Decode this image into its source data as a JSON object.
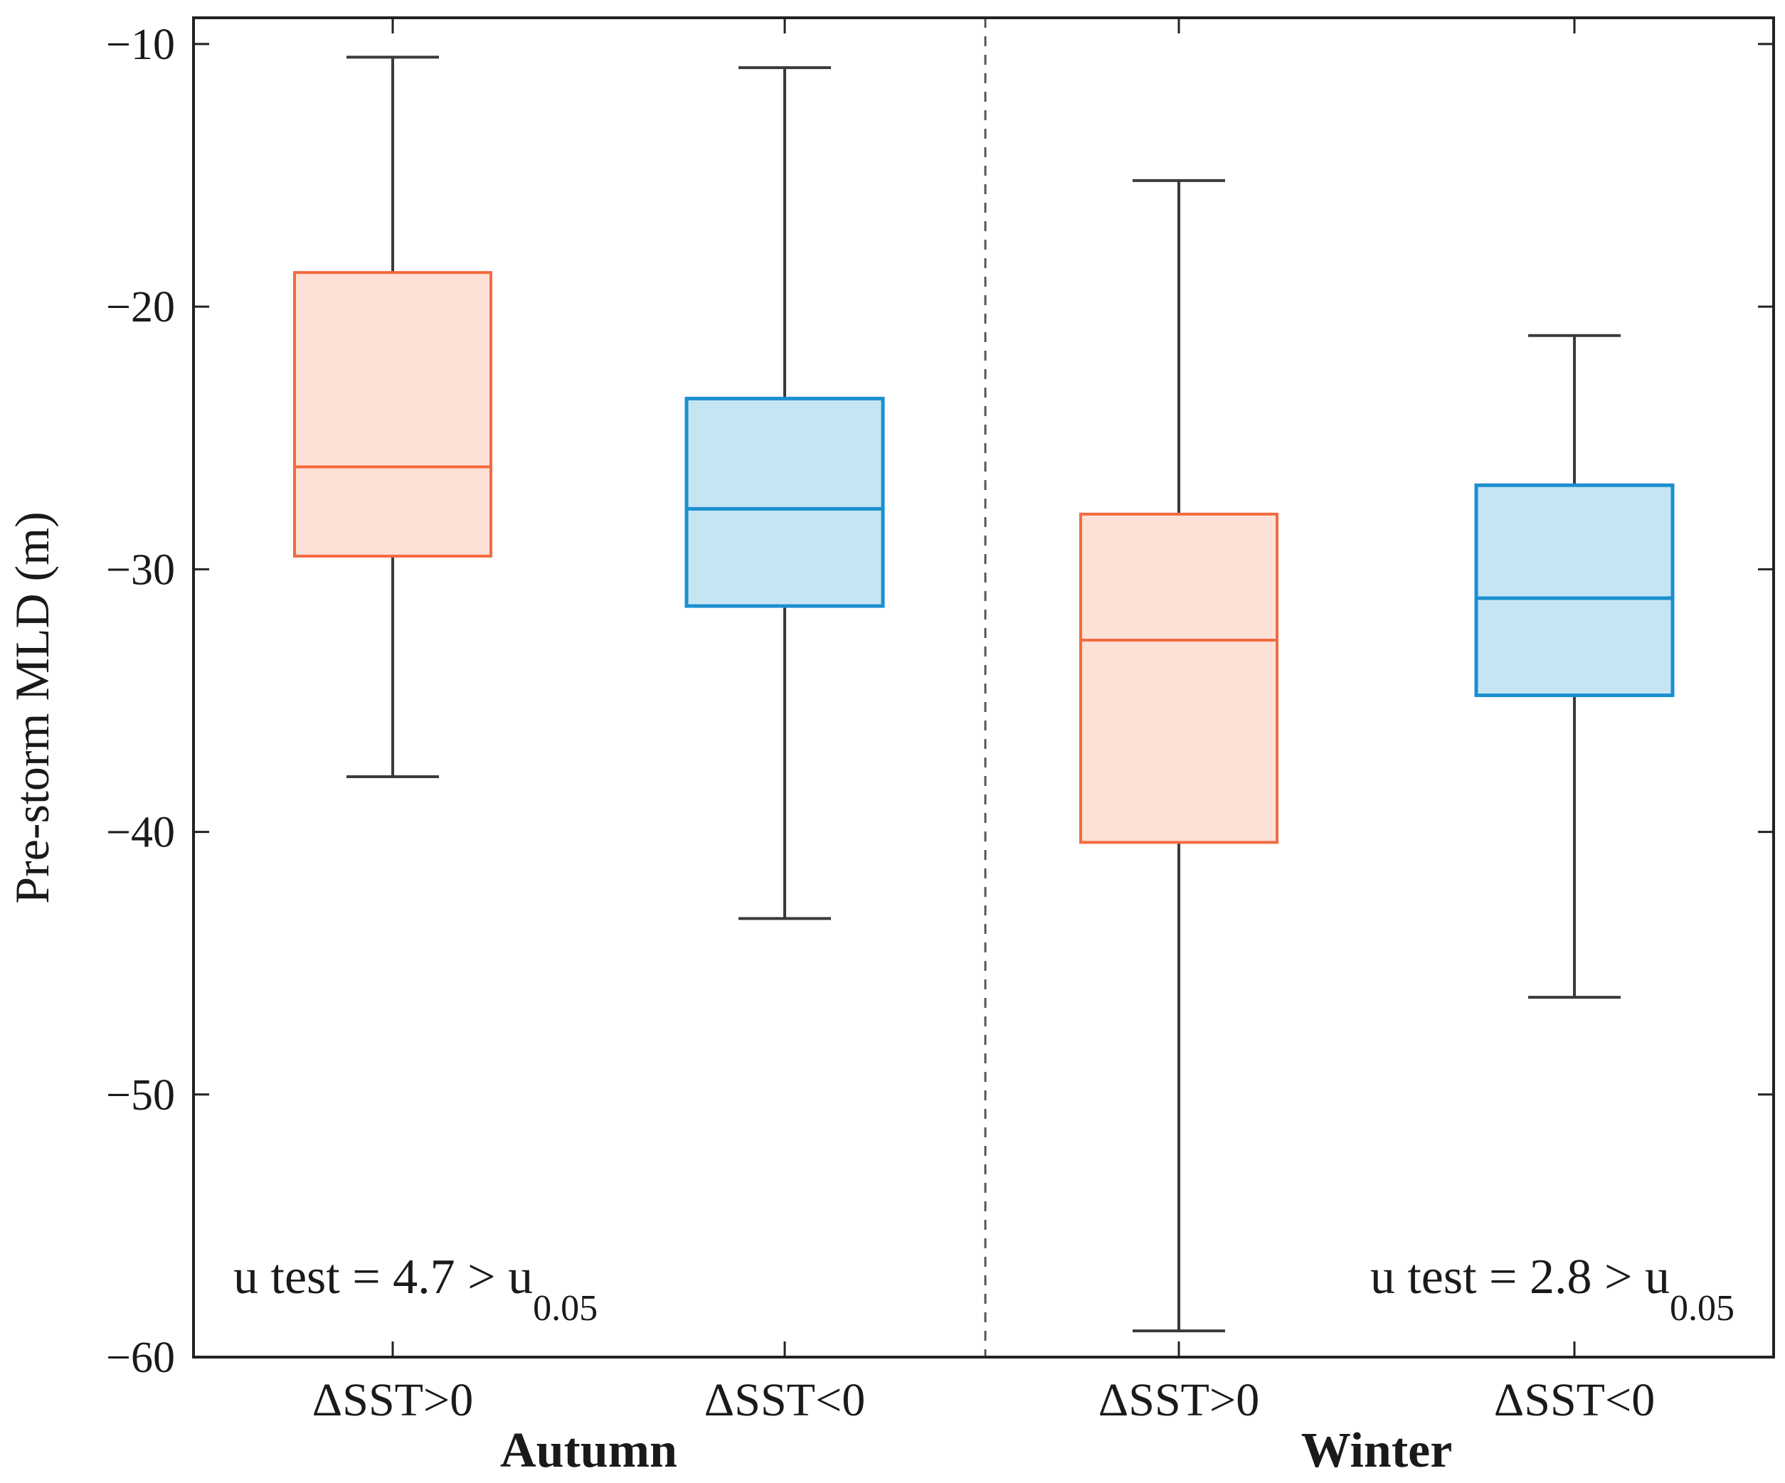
{
  "chart_data": {
    "type": "boxplot",
    "ylabel": "Pre-storm MLD (m)",
    "ylim": [
      -60,
      -9
    ],
    "yticks": [
      -10,
      -20,
      -30,
      -40,
      -50,
      -60
    ],
    "ytick_labels": [
      "−10",
      "−20",
      "−30",
      "−40",
      "−50",
      "−60"
    ],
    "groups": [
      {
        "label": "Autumn",
        "annotation": {
          "text": "u test = 4.7 > u",
          "subscript": "0.05"
        },
        "boxes": [
          {
            "label": "ΔSST>0",
            "series": "warm",
            "whisker_low": -37.9,
            "q1": -29.5,
            "median": -26.1,
            "q3": -18.7,
            "whisker_high": -10.5
          },
          {
            "label": "ΔSST<0",
            "series": "cool",
            "whisker_low": -43.3,
            "q1": -31.4,
            "median": -27.7,
            "q3": -23.5,
            "whisker_high": -10.9
          }
        ]
      },
      {
        "label": "Winter",
        "annotation": {
          "text": "u test = 2.8 > u",
          "subscript": "0.05"
        },
        "boxes": [
          {
            "label": "ΔSST>0",
            "series": "warm",
            "whisker_low": -59.0,
            "q1": -40.4,
            "median": -32.7,
            "q3": -27.9,
            "whisker_high": -15.2
          },
          {
            "label": "ΔSST<0",
            "series": "cool",
            "whisker_low": -46.3,
            "q1": -34.8,
            "median": -31.1,
            "q3": -26.8,
            "whisker_high": -21.1
          }
        ]
      }
    ],
    "colors": {
      "warm_edge": "#f26b3f",
      "warm_fill": "#fde0d6",
      "cool_edge": "#1a8fd0",
      "cool_fill": "#c6e5f3",
      "whisker": "#3a3a3a",
      "axis": "#222222",
      "divider": "#555555"
    },
    "grid": false
  }
}
